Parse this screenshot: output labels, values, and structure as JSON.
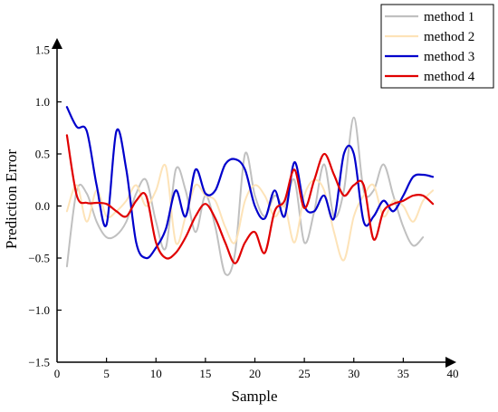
{
  "chart_data": {
    "type": "line",
    "title": "",
    "xlabel": "Sample",
    "ylabel": "Prediction Error",
    "xlim": [
      0,
      40
    ],
    "ylim": [
      -1.5,
      1.5
    ],
    "xticks": [
      0,
      5,
      10,
      15,
      20,
      25,
      30,
      35,
      40
    ],
    "yticks": [
      -1.5,
      -1.0,
      -0.5,
      0.0,
      0.5,
      1.0,
      1.5
    ],
    "xtick_labels": [
      "0",
      "5",
      "10",
      "15",
      "20",
      "25",
      "30",
      "35",
      "40"
    ],
    "ytick_labels": [
      "−1.5",
      "−1.0",
      "−0.5",
      "0.0",
      "0.5",
      "1.0",
      "1.5"
    ],
    "grid": false,
    "legend_position": "top-right",
    "series": [
      {
        "name": "method 1",
        "color": "#c0c0c0",
        "x": [
          1,
          2,
          3,
          4,
          5,
          6,
          7,
          8,
          9,
          10,
          11,
          12,
          13,
          14,
          15,
          16,
          17,
          18,
          19,
          20,
          21,
          22,
          23,
          24,
          25,
          26,
          27,
          28,
          29,
          30,
          31,
          32,
          33,
          34,
          35,
          36,
          37
        ],
        "y": [
          -0.58,
          0.15,
          0.12,
          -0.15,
          -0.3,
          -0.28,
          -0.15,
          0.12,
          0.25,
          -0.15,
          -0.4,
          0.35,
          0.15,
          -0.25,
          0.1,
          -0.2,
          -0.65,
          -0.45,
          0.5,
          0.1,
          -0.1,
          0.1,
          0.0,
          0.25,
          -0.35,
          -0.05,
          0.4,
          -0.1,
          0.15,
          0.85,
          0.15,
          0.15,
          0.4,
          0.1,
          -0.2,
          -0.38,
          -0.3
        ]
      },
      {
        "name": "method 2",
        "color": "#fde3b8",
        "x": [
          1,
          2,
          3,
          4,
          5,
          6,
          7,
          8,
          9,
          10,
          11,
          12,
          13,
          14,
          15,
          16,
          17,
          18,
          19,
          20,
          21,
          22,
          23,
          24,
          25,
          26,
          27,
          28,
          29,
          30,
          31,
          32,
          33,
          34,
          35,
          36,
          37,
          38
        ],
        "y": [
          -0.05,
          0.2,
          -0.15,
          0.15,
          -0.1,
          -0.05,
          0.05,
          0.2,
          0.0,
          0.15,
          0.38,
          -0.35,
          -0.1,
          0.2,
          0.1,
          0.05,
          -0.2,
          -0.35,
          0.05,
          0.2,
          0.1,
          -0.1,
          0.0,
          -0.35,
          0.1,
          0.25,
          0.15,
          -0.25,
          -0.52,
          -0.1,
          0.1,
          0.2,
          -0.1,
          0.05,
          0.0,
          -0.15,
          0.05,
          0.15
        ]
      },
      {
        "name": "method 3",
        "color": "#0000cc",
        "x": [
          1,
          2,
          3,
          4,
          5,
          6,
          7,
          8,
          9,
          10,
          11,
          12,
          13,
          14,
          15,
          16,
          17,
          18,
          19,
          20,
          21,
          22,
          23,
          24,
          25,
          26,
          27,
          28,
          29,
          30,
          31,
          32,
          33,
          34,
          35,
          36,
          37,
          38
        ],
        "y": [
          0.95,
          0.76,
          0.72,
          0.2,
          -0.18,
          0.72,
          0.35,
          -0.35,
          -0.5,
          -0.4,
          -0.22,
          0.15,
          -0.1,
          0.35,
          0.12,
          0.15,
          0.4,
          0.45,
          0.35,
          0.0,
          -0.12,
          0.15,
          -0.1,
          0.42,
          0.0,
          -0.05,
          0.1,
          -0.12,
          0.5,
          0.5,
          -0.15,
          -0.1,
          0.05,
          -0.05,
          0.1,
          0.28,
          0.3,
          0.28
        ]
      },
      {
        "name": "method 4",
        "color": "#e00000",
        "x": [
          1,
          2,
          3,
          4,
          5,
          6,
          7,
          8,
          9,
          10,
          11,
          12,
          13,
          14,
          15,
          16,
          17,
          18,
          19,
          20,
          21,
          22,
          23,
          24,
          25,
          26,
          27,
          28,
          29,
          30,
          31,
          32,
          33,
          34,
          35,
          36,
          37,
          38
        ],
        "y": [
          0.68,
          0.1,
          0.03,
          0.03,
          0.02,
          -0.05,
          -0.1,
          0.05,
          0.1,
          -0.35,
          -0.5,
          -0.45,
          -0.3,
          -0.1,
          0.02,
          -0.12,
          -0.35,
          -0.55,
          -0.35,
          -0.25,
          -0.45,
          -0.05,
          0.05,
          0.35,
          -0.02,
          0.25,
          0.5,
          0.3,
          0.1,
          0.2,
          0.2,
          -0.32,
          -0.05,
          0.02,
          0.05,
          0.1,
          0.1,
          0.02
        ]
      }
    ]
  }
}
